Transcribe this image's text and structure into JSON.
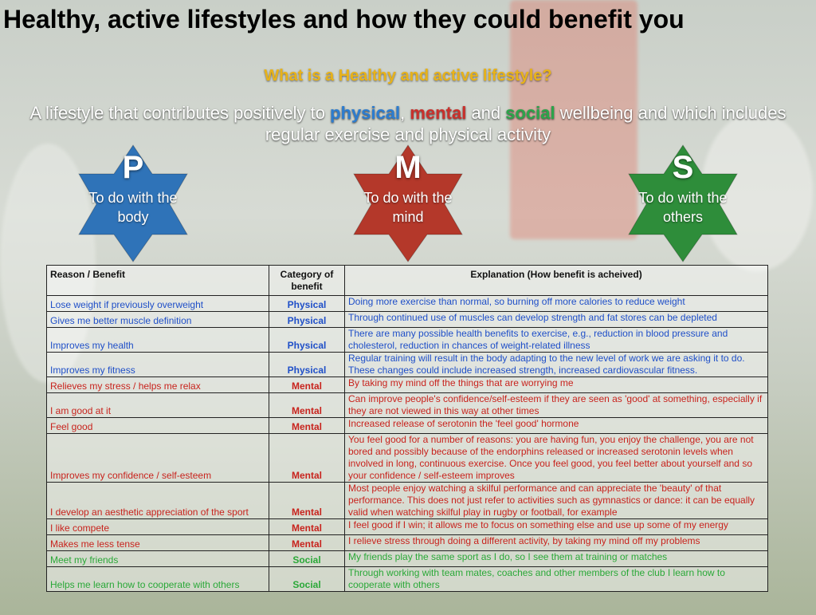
{
  "title": "Healthy, active lifestyles and how they could benefit you",
  "question": "What is a Healthy and active lifestyle?",
  "definition": {
    "part1": "A lifestyle that contributes positively to ",
    "physical": "physical",
    "sep1": ", ",
    "mental": "mental",
    "sep2": " and ",
    "social": "social",
    "part2": " wellbeing and which includes regular exercise and physical activity"
  },
  "stars": [
    {
      "letter": "P",
      "text": "To do with the body",
      "color": "#2f73b8"
    },
    {
      "letter": "M",
      "text": "To do with the mind",
      "color": "#b4382a"
    },
    {
      "letter": "S",
      "text": "To do with the others",
      "color": "#2e8d3a"
    }
  ],
  "table": {
    "headers": [
      "Reason / Benefit",
      "Category of benefit",
      "Explanation (How benefit is acheived)"
    ],
    "rows": [
      {
        "reason": "Lose weight if previously overweight",
        "category": "Physical",
        "explanation": "Doing more exercise than normal, so burning off more calories to reduce weight"
      },
      {
        "reason": "Gives me better muscle definition",
        "category": "Physical",
        "explanation": "Through continued use of muscles can develop strength and fat stores can be depleted"
      },
      {
        "reason": "Improves my health",
        "category": "Physical",
        "explanation": "There are many possible health benefits to exercise, e.g., reduction in blood pressure and cholesterol, reduction in chances of weight-related illness"
      },
      {
        "reason": "Improves my fitness",
        "category": "Physical",
        "explanation": "Regular training will result in the body adapting to the new level of work we are asking it to do. These changes could include increased strength, increased cardiovascular fitness."
      },
      {
        "reason": "Relieves my stress / helps me relax",
        "category": "Mental",
        "explanation": "By taking my mind off the things that are worrying me"
      },
      {
        "reason": "I am good at it",
        "category": "Mental",
        "explanation": "Can improve people's confidence/self-esteem if they are seen as 'good' at something, especially if they are not viewed in this way at other times"
      },
      {
        "reason": "Feel good",
        "category": "Mental",
        "explanation": "Increased release of serotonin the 'feel good' hormone"
      },
      {
        "reason": "Improves my confidence / self-esteem",
        "category": "Mental",
        "explanation": "You feel good for a number of reasons: you are having fun, you enjoy the challenge, you are not bored and possibly because of the endorphins released or increased serotonin levels when involved in long, continuous exercise. Once you feel good, you feel better about yourself and so your confidence / self-esteem improves"
      },
      {
        "reason": "I develop an aesthetic appreciation of the sport",
        "category": "Mental",
        "explanation": "Most people enjoy watching a skilful performance and can appreciate the 'beauty' of that performance. This does not just refer to activities such as gymnastics or dance: it can be equally valid when watching skilful play in rugby or football, for example"
      },
      {
        "reason": "I like compete",
        "category": "Mental",
        "explanation": "I feel good if I win; it allows me to focus on something else and use up some of my energy"
      },
      {
        "reason": "Makes me less tense",
        "category": "Mental",
        "explanation": "I relieve stress through doing a different activity, by taking my mind off my problems"
      },
      {
        "reason": "Meet my friends",
        "category": "Social",
        "explanation": "My friends play the same sport as I do, so I see them at training or matches"
      },
      {
        "reason": "Helps me learn how to cooperate with others",
        "category": "Social",
        "explanation": "Through working with team mates, coaches and other members of the club I learn how to cooperate with others"
      }
    ]
  }
}
